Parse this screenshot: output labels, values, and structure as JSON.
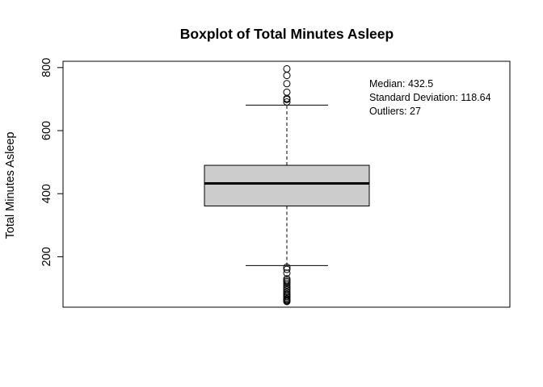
{
  "chart_data": {
    "type": "boxplot",
    "title": "Boxplot of Total Minutes Asleep",
    "xlabel": "",
    "ylabel": "Total Minutes Asleep",
    "ylim": [
      40,
      820
    ],
    "yticks": [
      200,
      400,
      600,
      800
    ],
    "grid": false,
    "legend": "none",
    "box": {
      "whisker_low": 172,
      "q1": 361,
      "median": 432.5,
      "q3": 490,
      "whisker_high": 681,
      "fill_color": "#cccccc"
    },
    "outliers": [
      691,
      699,
      702,
      722,
      749,
      775,
      796,
      167,
      160,
      148,
      130,
      125,
      121,
      116,
      110,
      104,
      99,
      94,
      88,
      82,
      78,
      74,
      70,
      66,
      63,
      60,
      58
    ],
    "annotations": [
      "Median: 432.5",
      "Standard Deviation: 118.64",
      "Outliers: 27"
    ]
  }
}
